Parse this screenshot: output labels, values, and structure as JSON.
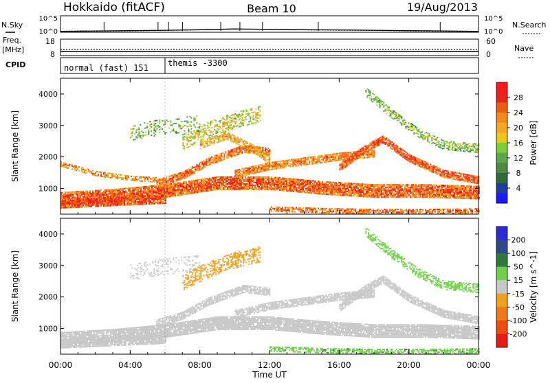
{
  "header": {
    "title": "Hokkaido (fitACF)",
    "beam": "Beam 10",
    "date": "19/Aug/2013"
  },
  "noise_panel": {
    "left_label": "N.Sky",
    "right_label": "N.Search",
    "left_ticks": [
      "10^5",
      "10^0"
    ],
    "right_ticks": [
      "10^5",
      "10^0"
    ]
  },
  "freq_panel": {
    "left_label_1": "Freq.",
    "left_label_2": "[MHz]",
    "right_label": "Nave",
    "left_ticks": [
      "18",
      "8"
    ],
    "right_ticks": [
      "60",
      "0"
    ]
  },
  "cpid_panel": {
    "label": "CPID",
    "segments": [
      {
        "text": "normal (fast) 151",
        "start_hour": 0
      },
      {
        "text": "themis -3300",
        "start_hour": 6
      }
    ]
  },
  "x_axis": {
    "label": "Time UT",
    "ticks": [
      "00:00",
      "04:00",
      "08:00",
      "12:00",
      "16:00",
      "20:00",
      "00:00"
    ]
  },
  "colors": {
    "power_scale": [
      "#1a1aff",
      "#1f3f9f",
      "#2e6b3a",
      "#4b8a3f",
      "#5aa84a",
      "#7ccc3c",
      "#e8c81a",
      "#f5a623",
      "#f28a1a",
      "#ef5a14",
      "#e8251a",
      "#ff1a1a"
    ],
    "velocity_scale": [
      "#2a2ad8",
      "#2a4a8a",
      "#2f7a3a",
      "#6fd14a",
      "#c8c8c8",
      "#f0a020",
      "#f07818",
      "#f04a12",
      "#e81a14"
    ],
    "ground_scatter": "#c8c8c8"
  },
  "chart_data": [
    {
      "type": "line",
      "name": "noise",
      "x_range_hours": [
        0,
        24
      ],
      "y_scale": "log",
      "ylim": [
        1,
        100000
      ],
      "series": [
        {
          "style": "solid",
          "x": [
            0,
            2,
            4,
            6,
            8,
            10,
            12,
            14,
            16,
            18,
            20,
            22,
            24
          ],
          "y": [
            2,
            2.5,
            3,
            4,
            6,
            10,
            8,
            6,
            5,
            4,
            3,
            2.5,
            2
          ]
        },
        {
          "style": "dotted",
          "x": [
            0,
            2,
            4,
            6,
            8,
            10,
            12,
            14,
            16,
            18,
            20,
            22,
            24
          ],
          "y": [
            1.5,
            2,
            2.5,
            3.5,
            5,
            9,
            7,
            5,
            4,
            3.5,
            2.5,
            2,
            1.5
          ]
        }
      ]
    },
    {
      "type": "line",
      "name": "frequency",
      "x_range_hours": [
        0,
        24
      ],
      "ylim_left": [
        8,
        18
      ],
      "ylim_right": [
        0,
        60
      ],
      "series": [
        {
          "style": "solid",
          "axis": "left",
          "x": [
            0,
            24
          ],
          "y": [
            10.5,
            10.5
          ]
        },
        {
          "style": "dotted",
          "axis": "right",
          "x": [
            0,
            24
          ],
          "y": [
            22,
            22
          ]
        }
      ]
    },
    {
      "type": "heatmap",
      "xlabel": "Time UT",
      "ylabel": "Slant Range [km]",
      "x_range_hours": [
        0,
        24
      ],
      "ylim": [
        180,
        4500
      ],
      "yticks": [
        1000,
        2000,
        3000,
        4000
      ],
      "colorbar": {
        "label": "Power [dB]",
        "ticks": [
          4,
          8,
          12,
          16,
          20,
          24,
          28
        ],
        "range": [
          0,
          32
        ]
      },
      "bands": [
        {
          "t": [
            0,
            3,
            6,
            9,
            12,
            15,
            18,
            21,
            24
          ],
          "r": [
            700,
            800,
            950,
            1200,
            1200,
            1050,
            950,
            950,
            900
          ],
          "w": 420,
          "v": 26,
          "density": 0.92
        },
        {
          "t": [
            0,
            2,
            4,
            6
          ],
          "r": [
            550,
            600,
            650,
            700
          ],
          "w": 300,
          "v": 28,
          "density": 0.9
        },
        {
          "t": [
            0,
            2,
            4,
            5.5
          ],
          "r": [
            1800,
            1500,
            1350,
            1300
          ],
          "w": 150,
          "v": 24,
          "density": 0.6
        },
        {
          "t": [
            5.5,
            7,
            8.5,
            10.5,
            12
          ],
          "r": [
            1200,
            1450,
            1900,
            2300,
            2200
          ],
          "w": 260,
          "v": 25,
          "density": 0.85
        },
        {
          "t": [
            8,
            9.5,
            11,
            12
          ],
          "r": [
            2400,
            2700,
            2300,
            1900
          ],
          "w": 220,
          "v": 22,
          "density": 0.7
        },
        {
          "t": [
            10,
            12,
            14,
            16,
            18
          ],
          "r": [
            1500,
            1750,
            1900,
            2050,
            2150
          ],
          "w": 260,
          "v": 24,
          "density": 0.85
        },
        {
          "t": [
            16,
            17.5,
            18.5,
            20,
            22,
            24
          ],
          "r": [
            1700,
            2300,
            2600,
            2000,
            1500,
            1300
          ],
          "w": 260,
          "v": 27,
          "density": 0.9
        },
        {
          "t": [
            17.5,
            19,
            20.5,
            22,
            24
          ],
          "r": [
            4100,
            3400,
            2800,
            2400,
            2300
          ],
          "w": 280,
          "v": 15,
          "density": 0.55
        },
        {
          "t": [
            12,
            15,
            18,
            21,
            24
          ],
          "r": [
            380,
            330,
            300,
            300,
            320
          ],
          "w": 160,
          "v": 25,
          "density": 0.7
        },
        {
          "t": [
            7,
            8.5,
            10,
            11.5
          ],
          "r": [
            2500,
            2900,
            3200,
            3400
          ],
          "w": 500,
          "v": 18,
          "density": 0.45
        },
        {
          "t": [
            4,
            6,
            8
          ],
          "r": [
            2800,
            3000,
            3100
          ],
          "w": 500,
          "v": 14,
          "density": 0.25
        }
      ]
    },
    {
      "type": "heatmap",
      "xlabel": "Time UT",
      "ylabel": "Slant Range [km]",
      "x_range_hours": [
        0,
        24
      ],
      "ylim": [
        180,
        4500
      ],
      "yticks": [
        1000,
        2000,
        3000,
        4000
      ],
      "colorbar": {
        "label": "Velocity [m s^-1]",
        "ticks": [
          200,
          100,
          50,
          15,
          -15,
          -50,
          -100,
          -200
        ]
      },
      "bands": [
        {
          "t": [
            0,
            3,
            6,
            9,
            12,
            15,
            18,
            21,
            24
          ],
          "r": [
            700,
            800,
            950,
            1200,
            1200,
            1050,
            950,
            950,
            900
          ],
          "w": 420,
          "v": 0,
          "density": 0.92
        },
        {
          "t": [
            0,
            2,
            4,
            6
          ],
          "r": [
            550,
            600,
            650,
            700
          ],
          "w": 300,
          "v": 0,
          "density": 0.9
        },
        {
          "t": [
            5.5,
            7,
            8.5,
            10.5,
            12
          ],
          "r": [
            1200,
            1450,
            1900,
            2300,
            2200
          ],
          "w": 260,
          "v": 0,
          "density": 0.85
        },
        {
          "t": [
            10,
            12,
            14,
            16,
            18
          ],
          "r": [
            1500,
            1750,
            1900,
            2050,
            2150
          ],
          "w": 260,
          "v": 0,
          "density": 0.85
        },
        {
          "t": [
            16,
            17.5,
            18.5,
            20,
            22,
            24
          ],
          "r": [
            1700,
            2300,
            2600,
            2000,
            1500,
            1300
          ],
          "w": 260,
          "v": 0,
          "density": 0.9
        },
        {
          "t": [
            17.5,
            19,
            20.5,
            22,
            24
          ],
          "r": [
            4100,
            3400,
            2800,
            2400,
            2300
          ],
          "w": 280,
          "v": 30,
          "density": 0.55
        },
        {
          "t": [
            12,
            15,
            18,
            21,
            24
          ],
          "r": [
            380,
            330,
            300,
            300,
            320
          ],
          "w": 160,
          "v": 40,
          "density": 0.6
        },
        {
          "t": [
            7,
            8.5,
            10,
            11.5
          ],
          "r": [
            2500,
            2900,
            3200,
            3400
          ],
          "w": 500,
          "v": -35,
          "density": 0.45
        },
        {
          "t": [
            4,
            6,
            8
          ],
          "r": [
            2800,
            3000,
            3100
          ],
          "w": 500,
          "v": 0,
          "density": 0.25
        }
      ]
    }
  ]
}
